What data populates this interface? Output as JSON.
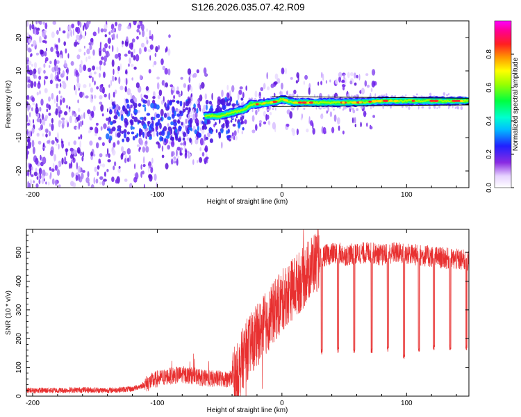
{
  "chart_data": [
    {
      "type": "heatmap",
      "title": "S126.2026.035.07.42.R09",
      "xlabel": "Height of straight line (km)",
      "ylabel": "Frequency (Hz)",
      "xlim": [
        -205,
        150
      ],
      "ylim": [
        -25,
        25
      ],
      "xticks": [
        -200,
        -100,
        0,
        100
      ],
      "yticks": [
        -20,
        -10,
        0,
        10,
        20
      ],
      "colorbar": {
        "label": "Normalized spectral amplitude",
        "range": [
          0,
          1
        ],
        "ticks": [
          "0.0",
          "0.2",
          "0.4",
          "0.6",
          "0.8"
        ],
        "tick_values": [
          0.0,
          0.2,
          0.4,
          0.6,
          0.8
        ]
      },
      "ridge": {
        "description": "signal frequency track",
        "points": [
          [
            -60,
            -3.5
          ],
          [
            -50,
            -3.5
          ],
          [
            -40,
            -2.5
          ],
          [
            -30,
            -1.5
          ],
          [
            -25,
            0
          ],
          [
            -20,
            0
          ],
          [
            -10,
            0.5
          ],
          [
            -5,
            0.8
          ],
          [
            0,
            1.5
          ],
          [
            10,
            0.5
          ],
          [
            30,
            0.5
          ],
          [
            60,
            0.5
          ],
          [
            80,
            1
          ],
          [
            100,
            1
          ],
          [
            150,
            1
          ]
        ]
      }
    },
    {
      "type": "line",
      "xlabel": "Height of straight line (km)",
      "ylabel": "SNR (10 * v/v)",
      "xlim": [
        -205,
        150
      ],
      "ylim": [
        0,
        580
      ],
      "xticks": [
        -200,
        -100,
        0,
        100
      ],
      "yticks": [
        0,
        100,
        200,
        300,
        400,
        500
      ],
      "series": [
        {
          "name": "SNR",
          "color": "#e83030",
          "x": [
            -205,
            -180,
            -160,
            -140,
            -120,
            -110,
            -100,
            -90,
            -80,
            -70,
            -60,
            -50,
            -40,
            -35,
            -30,
            -25,
            -20,
            -15,
            -10,
            -5,
            0,
            5,
            10,
            15,
            20,
            25,
            30,
            35,
            40,
            45,
            50,
            60,
            70,
            80,
            90,
            100,
            110,
            120,
            130,
            140,
            150
          ],
          "values": [
            20,
            20,
            22,
            20,
            25,
            40,
            60,
            70,
            75,
            70,
            60,
            60,
            60,
            80,
            150,
            180,
            210,
            240,
            270,
            300,
            330,
            360,
            380,
            400,
            430,
            460,
            480,
            490,
            495,
            500,
            490,
            495,
            500,
            490,
            500,
            495,
            490,
            485,
            480,
            475,
            470
          ],
          "dips": [
            {
              "x": 32,
              "y": 145
            },
            {
              "x": 45,
              "y": 150
            },
            {
              "x": 58,
              "y": 150
            },
            {
              "x": 72,
              "y": 150
            },
            {
              "x": 85,
              "y": 155
            },
            {
              "x": 98,
              "y": 130
            },
            {
              "x": 110,
              "y": 155
            },
            {
              "x": 122,
              "y": 160
            },
            {
              "x": 135,
              "y": 160
            },
            {
              "x": 148,
              "y": 160
            }
          ]
        }
      ]
    }
  ],
  "colors": {
    "line": "#e83030",
    "ridge_core": "#ff2a2a",
    "scatter": "#7a2cf0"
  }
}
